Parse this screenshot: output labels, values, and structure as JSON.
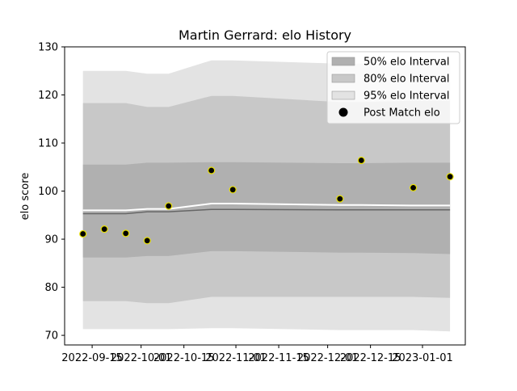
{
  "chart_data": {
    "type": "line",
    "title": "Martin Gerrard: elo History",
    "xlabel": "",
    "ylabel": "elo score",
    "ylim": [
      68,
      130
    ],
    "xlim": [
      "2022-09-06",
      "2023-01-15"
    ],
    "yticks": [
      70,
      80,
      90,
      100,
      110,
      120,
      130
    ],
    "xticks": [
      "2022-09-15",
      "2022-10-01",
      "2022-10-15",
      "2022-11-01",
      "2022-11-15",
      "2022-12-01",
      "2022-12-15",
      "2023-01-01"
    ],
    "grid": false,
    "legend_position": "top-right",
    "legend": [
      {
        "label": "50% elo Interval",
        "kind": "patch",
        "color": "#b0b0b0"
      },
      {
        "label": "80% elo Interval",
        "kind": "patch",
        "color": "#c8c8c8"
      },
      {
        "label": "95% elo Interval",
        "kind": "patch",
        "color": "#e3e3e3"
      },
      {
        "label": "Post Match elo",
        "kind": "marker",
        "color": "#000000"
      }
    ],
    "x": [
      "2022-09-12",
      "2022-09-19",
      "2022-09-26",
      "2022-10-03",
      "2022-10-10",
      "2022-10-24",
      "2022-10-31",
      "2022-12-05",
      "2022-12-12",
      "2022-12-29",
      "2023-01-10"
    ],
    "bands": {
      "b95": {
        "upper": [
          125,
          125,
          125,
          124.4,
          124.4,
          127.2,
          127.2,
          126.5,
          126.5,
          126.8,
          127
        ],
        "lower": [
          71.3,
          71.3,
          71.3,
          71.3,
          71.3,
          71.5,
          71.5,
          71.1,
          71.1,
          71.1,
          70.8
        ]
      },
      "b80": {
        "upper": [
          118.3,
          118.3,
          118.3,
          117.5,
          117.5,
          119.8,
          119.8,
          118.5,
          118.5,
          118.8,
          118.8
        ],
        "lower": [
          77.1,
          77.1,
          77.1,
          76.7,
          76.7,
          78,
          78,
          78,
          78,
          78,
          77.8
        ]
      },
      "b50": {
        "upper": [
          105.5,
          105.5,
          105.5,
          105.9,
          105.9,
          106,
          106,
          105.8,
          105.8,
          105.9,
          105.9
        ],
        "lower": [
          86.2,
          86.2,
          86.2,
          86.5,
          86.5,
          87.5,
          87.5,
          87.2,
          87.2,
          87.1,
          86.9
        ]
      }
    },
    "series": [
      {
        "name": "",
        "role": "mean",
        "color": "#ffffff",
        "values": [
          96,
          96,
          96,
          96.3,
          96.3,
          97.4,
          97.4,
          97.1,
          97.1,
          97,
          97
        ]
      },
      {
        "name": "",
        "role": "median",
        "color": "#666666",
        "values": [
          95.3,
          95.3,
          95.3,
          95.7,
          95.7,
          96.2,
          96.2,
          96.1,
          96.1,
          96.1,
          96.1
        ]
      },
      {
        "name": "Post Match elo",
        "role": "points",
        "color": "#000000",
        "edge_color": "#e8e000",
        "values": [
          91.1,
          92.1,
          91.2,
          89.7,
          96.9,
          104.3,
          100.3,
          98.4,
          106.4,
          100.7,
          103
        ]
      }
    ]
  }
}
